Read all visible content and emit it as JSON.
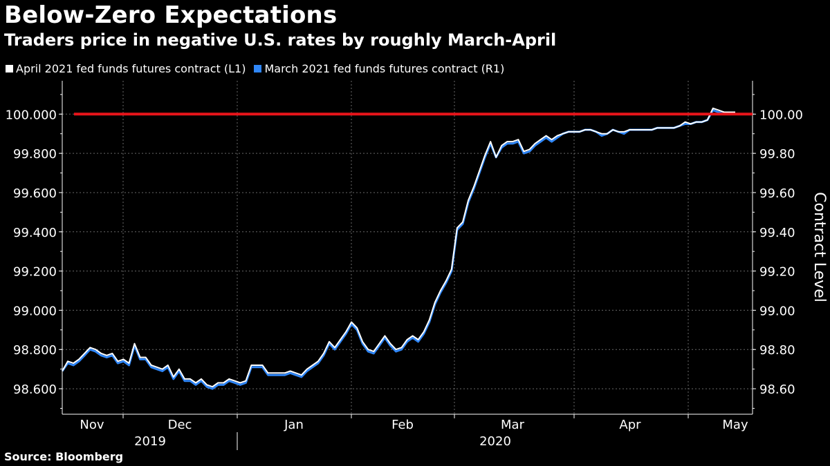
{
  "header": {
    "title": "Below-Zero Expectations",
    "subtitle": "Traders price in negative U.S. rates by roughly March-April"
  },
  "legend": [
    {
      "label": "April 2021 fed funds futures contract  (L1)",
      "color": "#ffffff"
    },
    {
      "label": "March 2021 fed funds futures contract  (R1)",
      "color": "#2f86f7"
    }
  ],
  "source": "Source: Bloomberg",
  "chart_data": {
    "type": "line",
    "left_axis": {
      "ticks": [
        "98.600",
        "98.800",
        "99.000",
        "99.200",
        "99.400",
        "99.600",
        "99.800",
        "100.000"
      ],
      "ylim": [
        98.47,
        100.17
      ]
    },
    "right_axis": {
      "title": "Contract Level",
      "ticks": [
        "98.60",
        "98.80",
        "99.00",
        "99.20",
        "99.40",
        "99.60",
        "99.80",
        "100.00"
      ],
      "ylim": [
        98.47,
        100.17
      ]
    },
    "x_axis": {
      "months": [
        "Nov",
        "Dec",
        "Jan",
        "Feb",
        "Mar",
        "Apr",
        "May"
      ],
      "years": [
        "2019",
        "2020"
      ]
    },
    "reference_line": {
      "value": 100.0,
      "color": "#e8141a"
    },
    "series": [
      {
        "name": "April 2021 fed funds futures contract  (L1)",
        "color": "#ffffff",
        "values": [
          98.69,
          98.74,
          98.73,
          98.75,
          98.78,
          98.81,
          98.8,
          98.78,
          98.77,
          98.78,
          98.74,
          98.75,
          98.73,
          98.83,
          98.76,
          98.76,
          98.72,
          98.71,
          98.7,
          98.72,
          98.66,
          98.7,
          98.65,
          98.65,
          98.63,
          98.65,
          98.62,
          98.61,
          98.63,
          98.63,
          98.65,
          98.64,
          98.63,
          98.64,
          98.72,
          98.72,
          98.72,
          98.68,
          98.68,
          98.68,
          98.68,
          98.69,
          98.68,
          98.67,
          98.7,
          98.72,
          98.74,
          98.78,
          98.84,
          98.81,
          98.85,
          98.89,
          98.94,
          98.91,
          98.84,
          98.8,
          98.79,
          98.83,
          98.87,
          98.83,
          98.8,
          98.81,
          98.85,
          98.87,
          98.85,
          98.89,
          98.95,
          99.04,
          99.1,
          99.15,
          99.21,
          99.42,
          99.45,
          99.56,
          99.63,
          99.71,
          99.79,
          99.86,
          99.78,
          99.84,
          99.86,
          99.86,
          99.87,
          99.81,
          99.82,
          99.85,
          99.87,
          99.89,
          99.87,
          99.89,
          99.9,
          99.91,
          99.91,
          99.91,
          99.92,
          99.92,
          99.91,
          99.9,
          99.9,
          99.92,
          99.91,
          99.91,
          99.92,
          99.92,
          99.92,
          99.92,
          99.92,
          99.93,
          99.93,
          99.93,
          99.93,
          99.94,
          99.96,
          99.95,
          99.96,
          99.96,
          99.97,
          100.03,
          100.02,
          100.01,
          100.01,
          100.01
        ],
        "x_start": "2019-10-28",
        "x_step_days": 1.4
      },
      {
        "name": "March 2021 fed funds futures contract  (R1)",
        "color": "#2f86f7",
        "values": [
          98.69,
          98.73,
          98.72,
          98.74,
          98.77,
          98.8,
          98.79,
          98.77,
          98.76,
          98.77,
          98.73,
          98.74,
          98.72,
          98.82,
          98.75,
          98.75,
          98.71,
          98.7,
          98.69,
          98.71,
          98.65,
          98.69,
          98.64,
          98.64,
          98.62,
          98.64,
          98.61,
          98.6,
          98.62,
          98.62,
          98.64,
          98.63,
          98.62,
          98.63,
          98.71,
          98.71,
          98.71,
          98.67,
          98.67,
          98.67,
          98.67,
          98.68,
          98.67,
          98.66,
          98.69,
          98.71,
          98.73,
          98.77,
          98.83,
          98.8,
          98.84,
          98.88,
          98.93,
          98.9,
          98.83,
          98.79,
          98.78,
          98.82,
          98.86,
          98.82,
          98.79,
          98.8,
          98.84,
          98.86,
          98.84,
          98.88,
          98.94,
          99.03,
          99.09,
          99.14,
          99.2,
          99.41,
          99.44,
          99.55,
          99.62,
          99.7,
          99.78,
          99.85,
          99.78,
          99.83,
          99.85,
          99.85,
          99.86,
          99.8,
          99.81,
          99.84,
          99.86,
          99.88,
          99.86,
          99.88,
          99.9,
          99.91,
          99.91,
          99.91,
          99.92,
          99.92,
          99.91,
          99.89,
          99.9,
          99.92,
          99.91,
          99.9,
          99.92,
          99.92,
          99.92,
          99.92,
          99.92,
          99.93,
          99.93,
          99.93,
          99.93,
          99.94,
          99.95,
          99.95,
          99.96,
          99.96,
          99.97,
          100.02,
          100.01,
          100.0,
          100.0,
          100.0
        ],
        "x_start": "2019-10-28",
        "x_step_days": 1.4
      }
    ]
  }
}
